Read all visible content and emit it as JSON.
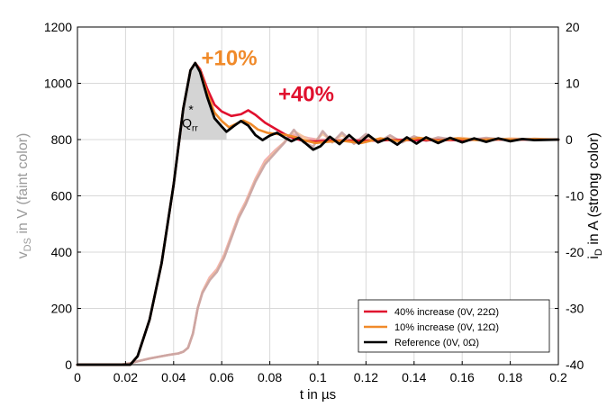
{
  "chart_data": {
    "type": "line",
    "xlabel": "t in µs",
    "ylabel_left_parts": [
      "v",
      "DS",
      " in V (faint color)"
    ],
    "ylabel_right_parts": [
      "i",
      "D",
      " in A (strong color)"
    ],
    "xlim": [
      0,
      0.2
    ],
    "ylim_left": [
      0,
      1200
    ],
    "ylim_right": [
      -40,
      20
    ],
    "x_ticks": [
      0,
      0.02,
      0.04,
      0.06,
      0.08,
      0.1,
      0.12,
      0.14,
      0.16,
      0.18,
      0.2
    ],
    "x_tick_labels": [
      "0",
      "0.02",
      "0.04",
      "0.06",
      "0.08",
      "0.1",
      "0.12",
      "0.14",
      "0.16",
      "0.18",
      "0.2"
    ],
    "y_ticks_left": [
      0,
      200,
      400,
      600,
      800,
      1000,
      1200
    ],
    "y_ticks_right": [
      20,
      10,
      0,
      -10,
      -20,
      -30,
      -40
    ],
    "grid": true,
    "legend_position": "bottom-right",
    "annotations": {
      "plus10": "+10%",
      "plus40": "+40%",
      "qrr_main": "Q",
      "qrr_sub": "rr",
      "qrr_sup": "*"
    },
    "colors": {
      "red": "#e0102e",
      "orange": "#f08a2a",
      "black": "#000000",
      "anno_orange": "#f08a2a",
      "anno_red": "#e0102e",
      "fill": "#cfcfcf"
    },
    "series": [
      {
        "name": "40% increase (0V, 22Ω)",
        "color": "#e0102e",
        "axis": "right",
        "x": [
          0.0,
          0.018,
          0.022,
          0.025,
          0.03,
          0.035,
          0.04,
          0.044,
          0.047,
          0.049,
          0.051,
          0.054,
          0.057,
          0.06,
          0.064,
          0.068,
          0.071,
          0.074,
          0.078,
          0.082,
          0.086,
          0.09,
          0.094,
          0.098,
          0.1,
          0.104,
          0.11,
          0.12,
          0.13,
          0.14,
          0.15,
          0.16,
          0.17,
          0.18,
          0.19,
          0.2
        ],
        "y": [
          -40,
          -40,
          -40,
          -38.5,
          -32,
          -22,
          -8,
          5.5,
          12.3,
          13.6,
          12.5,
          9,
          6.2,
          5,
          4.2,
          4.5,
          5.2,
          4.4,
          3.0,
          2.0,
          1.0,
          0.2,
          -0.2,
          -0.3,
          -0.3,
          -0.2,
          -0.2,
          -0.2,
          -0.1,
          -0.1,
          -0.1,
          -0.1,
          0.0,
          0.0,
          0.0,
          0.0
        ]
      },
      {
        "name": "10% increase (0V, 12Ω)",
        "color": "#f08a2a",
        "axis": "right",
        "x": [
          0.0,
          0.018,
          0.022,
          0.025,
          0.03,
          0.035,
          0.04,
          0.044,
          0.047,
          0.049,
          0.051,
          0.054,
          0.057,
          0.06,
          0.063,
          0.066,
          0.069,
          0.072,
          0.075,
          0.079,
          0.083,
          0.087,
          0.091,
          0.095,
          0.099,
          0.104,
          0.11,
          0.118,
          0.126,
          0.134,
          0.142,
          0.15,
          0.158,
          0.166,
          0.174,
          0.182,
          0.19,
          0.2
        ],
        "y": [
          -40,
          -40,
          -40,
          -38.5,
          -32,
          -22,
          -8,
          5.5,
          12.3,
          13.6,
          12.2,
          8.2,
          4.8,
          3.3,
          2.2,
          2.8,
          3.4,
          2.8,
          1.8,
          1.2,
          1.0,
          0.8,
          0.4,
          -0.2,
          -0.6,
          -0.4,
          -0.2,
          -0.6,
          0.2,
          -0.3,
          0.3,
          -0.2,
          0.2,
          -0.1,
          0.1,
          0.0,
          0.1,
          0.0
        ]
      },
      {
        "name": "Reference (0V, 0Ω)",
        "color": "#000000",
        "axis": "right",
        "x": [
          0.0,
          0.018,
          0.022,
          0.025,
          0.03,
          0.035,
          0.04,
          0.044,
          0.047,
          0.049,
          0.051,
          0.054,
          0.057,
          0.06,
          0.062,
          0.065,
          0.068,
          0.071,
          0.074,
          0.077,
          0.08,
          0.083,
          0.086,
          0.089,
          0.092,
          0.095,
          0.098,
          0.101,
          0.105,
          0.109,
          0.113,
          0.117,
          0.121,
          0.125,
          0.129,
          0.133,
          0.137,
          0.141,
          0.145,
          0.15,
          0.155,
          0.16,
          0.165,
          0.17,
          0.175,
          0.18,
          0.185,
          0.19,
          0.2
        ],
        "y": [
          -40,
          -40,
          -40,
          -38.5,
          -32,
          -22,
          -8,
          5.5,
          12.3,
          13.6,
          12.0,
          7.5,
          3.8,
          2.3,
          1.4,
          2.4,
          3.3,
          2.5,
          0.8,
          -0.1,
          0.7,
          1.2,
          0.4,
          -0.3,
          0.3,
          -0.7,
          -1.8,
          -1.2,
          0.5,
          -0.8,
          0.8,
          -0.7,
          0.8,
          -0.5,
          0.2,
          -0.9,
          0.4,
          -0.7,
          0.4,
          -0.6,
          0.3,
          -0.5,
          0.2,
          -0.4,
          0.2,
          -0.3,
          0.1,
          -0.1,
          0.0
        ]
      },
      {
        "name": "",
        "color": "#f0a5aa",
        "axis": "left",
        "x": [
          0.0,
          0.018,
          0.022,
          0.025,
          0.03,
          0.035,
          0.038,
          0.042,
          0.044,
          0.046,
          0.048,
          0.05,
          0.052,
          0.055,
          0.058,
          0.061,
          0.064,
          0.067,
          0.07,
          0.074,
          0.078,
          0.082,
          0.086,
          0.088,
          0.09,
          0.093,
          0.096,
          0.1,
          0.105,
          0.11,
          0.12,
          0.13,
          0.14,
          0.15,
          0.16,
          0.17,
          0.18,
          0.19,
          0.2
        ],
        "y": [
          0,
          0,
          5,
          12,
          22,
          30,
          35,
          40,
          46,
          60,
          110,
          200,
          260,
          310,
          340,
          390,
          460,
          530,
          580,
          660,
          725,
          760,
          790,
          808,
          818,
          812,
          805,
          800,
          800,
          800,
          800,
          800,
          800,
          800,
          800,
          800,
          800,
          800,
          800
        ]
      },
      {
        "name": "",
        "color": "#f6c39c",
        "axis": "left",
        "x": [
          0.0,
          0.018,
          0.022,
          0.025,
          0.03,
          0.035,
          0.038,
          0.042,
          0.044,
          0.046,
          0.048,
          0.05,
          0.052,
          0.055,
          0.058,
          0.061,
          0.064,
          0.067,
          0.07,
          0.074,
          0.078,
          0.082,
          0.086,
          0.09,
          0.094,
          0.098,
          0.102,
          0.106,
          0.11,
          0.115,
          0.12,
          0.125,
          0.13,
          0.135,
          0.14,
          0.15,
          0.16,
          0.17,
          0.18,
          0.19,
          0.2
        ],
        "y": [
          0,
          0,
          5,
          12,
          22,
          30,
          35,
          40,
          46,
          60,
          110,
          200,
          258,
          305,
          335,
          385,
          455,
          525,
          575,
          655,
          718,
          755,
          790,
          830,
          810,
          790,
          820,
          795,
          815,
          790,
          812,
          792,
          810,
          795,
          808,
          800,
          806,
          796,
          804,
          800,
          800
        ]
      },
      {
        "name": "",
        "color": "#c9a3a3",
        "axis": "left",
        "x": [
          0.0,
          0.018,
          0.022,
          0.025,
          0.03,
          0.035,
          0.038,
          0.042,
          0.044,
          0.046,
          0.048,
          0.05,
          0.052,
          0.055,
          0.058,
          0.061,
          0.064,
          0.067,
          0.07,
          0.074,
          0.078,
          0.082,
          0.086,
          0.09,
          0.094,
          0.098,
          0.102,
          0.106,
          0.11,
          0.115,
          0.12,
          0.125,
          0.13,
          0.135,
          0.14,
          0.145,
          0.15,
          0.16,
          0.17,
          0.18,
          0.19,
          0.2
        ],
        "y": [
          0,
          0,
          5,
          12,
          22,
          30,
          35,
          40,
          46,
          60,
          110,
          200,
          255,
          300,
          330,
          380,
          450,
          520,
          570,
          650,
          712,
          750,
          788,
          835,
          790,
          775,
          830,
          790,
          825,
          785,
          820,
          790,
          815,
          790,
          812,
          795,
          808,
          795,
          806,
          797,
          803,
          800
        ]
      }
    ]
  }
}
